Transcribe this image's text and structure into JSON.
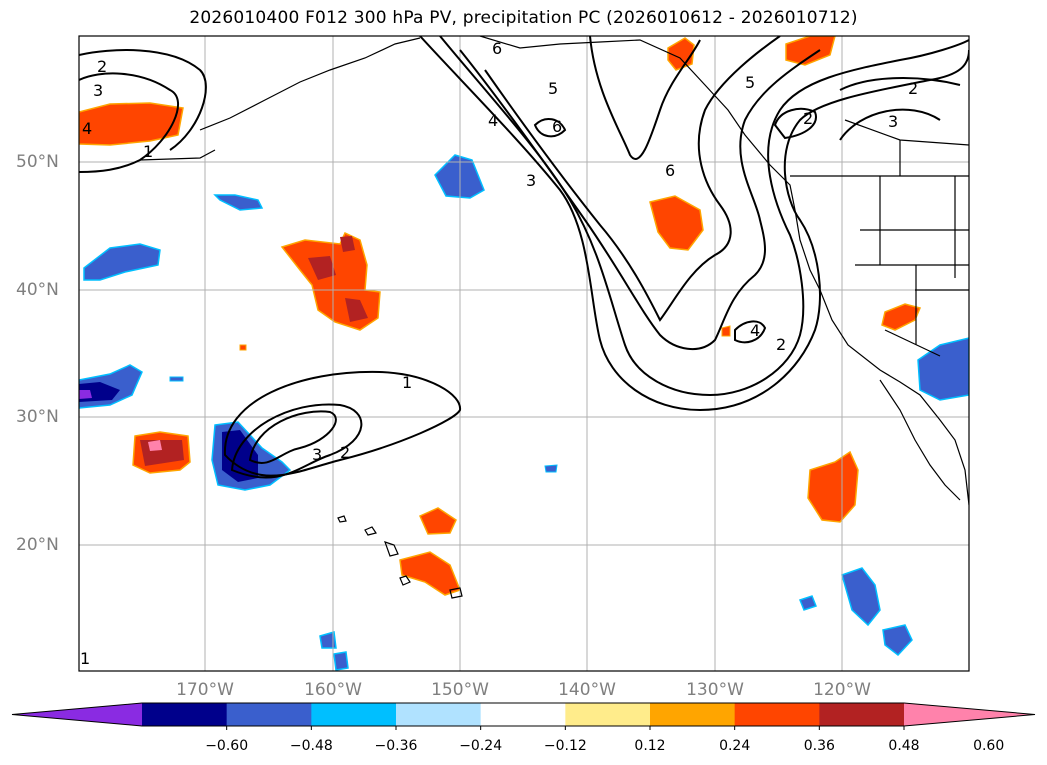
{
  "title": "2026010400 F012 300 hPa PV, precipitation PC (2026010612 - 2026010712)",
  "map": {
    "lat_ticks": [
      {
        "value": 50,
        "label": "50°N"
      },
      {
        "value": 40,
        "label": "40°N"
      },
      {
        "value": 30,
        "label": "30°N"
      },
      {
        "value": 20,
        "label": "20°N"
      }
    ],
    "lon_ticks": [
      {
        "value": -170,
        "label": "170°W"
      },
      {
        "value": -160,
        "label": "160°W"
      },
      {
        "value": -150,
        "label": "150°W"
      },
      {
        "value": -140,
        "label": "140°W"
      },
      {
        "value": -130,
        "label": "130°W"
      },
      {
        "value": -120,
        "label": "120°W"
      }
    ],
    "contour_labels": [
      "1",
      "2",
      "3",
      "4",
      "5",
      "6"
    ]
  },
  "colorbar": {
    "levels": [
      "−0.60",
      "−0.48",
      "−0.36",
      "−0.24",
      "−0.12",
      "0.12",
      "0.24",
      "0.36",
      "0.48",
      "0.60"
    ],
    "colors": [
      "#8a2be2",
      "#00008b",
      "#3a5fcd",
      "#00bfff",
      "#b0e2ff",
      "#ffffff",
      "#ffec8b",
      "#ffa500",
      "#ff4500",
      "#b22222",
      "#ff82ab"
    ]
  }
}
